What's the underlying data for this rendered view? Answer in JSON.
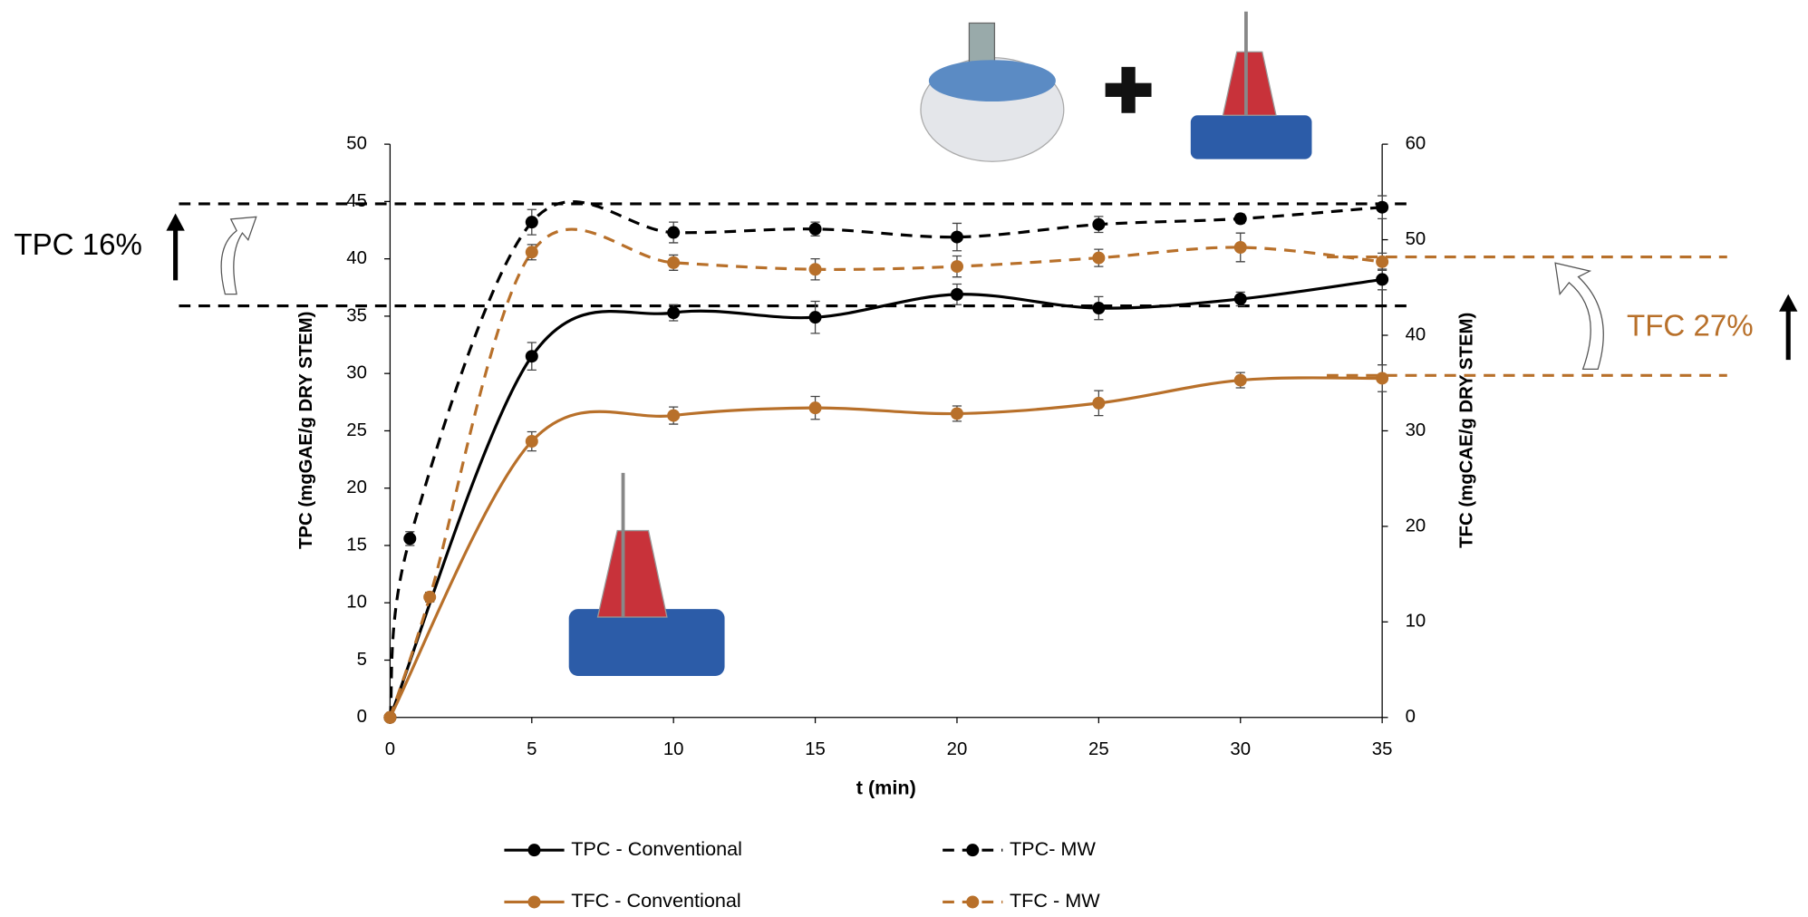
{
  "chart_data": {
    "type": "line",
    "xlabel": "t (min)",
    "ylabel": "TPC (mgGAE/g DRY STEM)",
    "y2label": "TFC (mgCAE/g DRY STEM)",
    "xlim": [
      0,
      35
    ],
    "xticks": [
      0,
      5,
      10,
      15,
      20,
      25,
      30,
      35
    ],
    "ylim": [
      0,
      50
    ],
    "yticks": [
      0,
      5,
      10,
      15,
      20,
      25,
      30,
      35,
      40,
      45,
      50
    ],
    "y2lim": [
      0,
      60
    ],
    "y2ticks": [
      0,
      10,
      20,
      30,
      40,
      50,
      60
    ],
    "series": [
      {
        "name": "TPC - Conventional",
        "color": "#000000",
        "dashed": false,
        "x": [
          0,
          5,
          10,
          15,
          20,
          25,
          30,
          35
        ],
        "values": [
          0,
          31.5,
          35.3,
          34.9,
          36.9,
          35.7,
          36.5,
          38.2
        ],
        "errors": [
          0,
          1.2,
          0.7,
          1.4,
          0.9,
          1.0,
          0.6,
          0.9
        ]
      },
      {
        "name": "TPC- MW",
        "color": "#000000",
        "dashed": true,
        "x": [
          0,
          0.7,
          5,
          10,
          15,
          20,
          25,
          30,
          35
        ],
        "values": [
          0,
          15.6,
          43.2,
          42.3,
          42.6,
          41.9,
          43.0,
          43.5,
          44.5
        ],
        "errors": [
          0,
          0.6,
          1.1,
          0.9,
          0.6,
          1.2,
          0.7,
          0.4,
          1.0
        ]
      },
      {
        "name": "TFC - Conventional",
        "color": "#b8702a",
        "dashed": false,
        "axis": "y2",
        "x": [
          0,
          5,
          10,
          15,
          20,
          25,
          30,
          35
        ],
        "values": [
          0,
          28.9,
          31.6,
          32.4,
          31.8,
          32.9,
          35.3,
          35.5
        ],
        "errors": [
          0,
          1.0,
          0.9,
          1.2,
          0.8,
          1.3,
          0.8,
          1.4
        ]
      },
      {
        "name": "TFC - MW",
        "color": "#b8702a",
        "dashed": true,
        "axis": "y2",
        "x": [
          0,
          1.4,
          5,
          10,
          15,
          20,
          25,
          30,
          35
        ],
        "values": [
          0,
          12.6,
          48.7,
          47.6,
          46.9,
          47.2,
          48.1,
          49.2,
          47.7
        ],
        "errors": [
          0,
          0.5,
          0.8,
          0.8,
          1.1,
          1.1,
          0.9,
          1.5,
          0.9
        ]
      }
    ],
    "reference_lines": [
      {
        "value": 44.8,
        "axis": "y",
        "color": "#000000"
      },
      {
        "value": 35.9,
        "axis": "y",
        "color": "#000000"
      },
      {
        "value": 48.2,
        "axis": "y2",
        "color": "#b8702a"
      },
      {
        "value": 35.8,
        "axis": "y2",
        "color": "#b8702a"
      }
    ],
    "annotations": [
      {
        "text": "TPC 16%",
        "color": "#000000"
      },
      {
        "text": "TFC 27%",
        "color": "#b8702a"
      }
    ]
  }
}
